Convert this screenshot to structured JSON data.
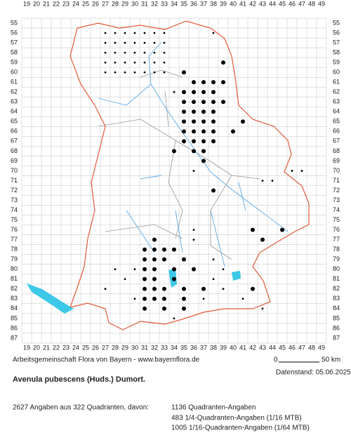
{
  "map": {
    "columns": [
      19,
      20,
      21,
      22,
      23,
      24,
      25,
      26,
      27,
      28,
      29,
      30,
      31,
      32,
      33,
      34,
      35,
      36,
      37,
      38,
      39,
      40,
      41,
      42,
      43,
      44,
      45,
      46,
      47,
      48,
      49
    ],
    "rows": [
      55,
      56,
      57,
      58,
      59,
      60,
      61,
      62,
      63,
      64,
      65,
      66,
      67,
      68,
      69,
      70,
      71,
      72,
      73,
      74,
      75,
      76,
      77,
      78,
      79,
      80,
      81,
      82,
      83,
      84,
      85,
      86,
      87
    ],
    "large_records": [
      [
        35,
        60
      ],
      [
        36,
        61
      ],
      [
        37,
        61
      ],
      [
        38,
        61
      ],
      [
        35,
        62
      ],
      [
        36,
        62
      ],
      [
        37,
        62
      ],
      [
        38,
        62
      ],
      [
        35,
        63
      ],
      [
        36,
        63
      ],
      [
        37,
        63
      ],
      [
        38,
        63
      ],
      [
        35,
        64
      ],
      [
        36,
        64
      ],
      [
        37,
        64
      ],
      [
        38,
        64
      ],
      [
        35,
        65
      ],
      [
        36,
        65
      ],
      [
        37,
        65
      ],
      [
        38,
        65
      ],
      [
        35,
        66
      ],
      [
        36,
        66
      ],
      [
        37,
        66
      ],
      [
        38,
        66
      ],
      [
        35,
        67
      ],
      [
        36,
        67
      ],
      [
        37,
        67
      ],
      [
        38,
        67
      ],
      [
        36,
        68
      ],
      [
        37,
        68
      ],
      [
        39,
        59
      ],
      [
        39,
        61
      ],
      [
        39,
        63
      ],
      [
        40,
        66
      ],
      [
        41,
        65
      ],
      [
        34,
        68
      ],
      [
        37,
        69
      ],
      [
        38,
        72
      ],
      [
        42,
        76
      ],
      [
        43,
        77
      ],
      [
        45,
        76
      ],
      [
        32,
        77
      ],
      [
        31,
        78
      ],
      [
        32,
        78
      ],
      [
        33,
        78
      ],
      [
        34,
        78
      ],
      [
        31,
        79
      ],
      [
        32,
        79
      ],
      [
        33,
        79
      ],
      [
        35,
        79
      ],
      [
        31,
        80
      ],
      [
        32,
        80
      ],
      [
        34,
        80
      ],
      [
        36,
        80
      ],
      [
        31,
        81
      ],
      [
        32,
        81
      ],
      [
        34,
        81
      ],
      [
        31,
        82
      ],
      [
        32,
        82
      ],
      [
        33,
        82
      ],
      [
        35,
        82
      ],
      [
        37,
        82
      ],
      [
        31,
        83
      ],
      [
        32,
        83
      ],
      [
        33,
        83
      ],
      [
        35,
        83
      ],
      [
        31,
        84
      ],
      [
        33,
        84
      ],
      [
        35,
        84
      ],
      [
        42,
        82
      ]
    ],
    "small_records": [
      [
        27,
        56
      ],
      [
        28,
        56
      ],
      [
        29,
        56
      ],
      [
        30,
        56
      ],
      [
        31,
        56
      ],
      [
        32,
        56
      ],
      [
        33,
        56
      ],
      [
        27,
        57
      ],
      [
        28,
        57
      ],
      [
        29,
        57
      ],
      [
        30,
        57
      ],
      [
        31,
        57
      ],
      [
        32,
        57
      ],
      [
        33,
        57
      ],
      [
        27,
        58
      ],
      [
        28,
        58
      ],
      [
        29,
        58
      ],
      [
        30,
        58
      ],
      [
        31,
        58
      ],
      [
        32,
        58
      ],
      [
        33,
        58
      ],
      [
        27,
        59
      ],
      [
        28,
        59
      ],
      [
        29,
        59
      ],
      [
        30,
        59
      ],
      [
        31,
        59
      ],
      [
        32,
        59
      ],
      [
        33,
        59
      ],
      [
        27,
        60
      ],
      [
        28,
        60
      ],
      [
        29,
        60
      ],
      [
        30,
        60
      ],
      [
        31,
        60
      ],
      [
        32,
        60
      ],
      [
        33,
        60
      ],
      [
        38,
        56
      ],
      [
        34,
        62
      ],
      [
        36,
        70
      ],
      [
        43,
        71
      ],
      [
        44,
        71
      ],
      [
        46,
        70
      ],
      [
        47,
        70
      ],
      [
        28,
        80
      ],
      [
        27,
        82
      ],
      [
        29,
        81
      ],
      [
        30,
        83
      ],
      [
        36,
        77
      ],
      [
        38,
        79
      ],
      [
        38,
        81
      ],
      [
        39,
        82
      ],
      [
        41,
        83
      ],
      [
        43,
        84
      ],
      [
        36,
        76
      ],
      [
        30,
        80
      ],
      [
        34,
        85
      ],
      [
        37,
        83
      ],
      [
        39,
        80
      ]
    ],
    "credit": "Arbeitsgemeinschaft Flora von Bayern - www.bayernflora.de",
    "scale": {
      "start": "0",
      "end": "50 km"
    },
    "date": "Datenstand: 05.06.2025",
    "title": "Avenula pubescens (Huds.) Dumort.",
    "summary": "2627 Angaben aus 322 Quadranten, davon:",
    "breakdown": [
      "1136 Quadranten-Angaben",
      "483 1/4-Quadranten-Angaben (1/16 MTB)",
      "1005 1/16-Quadranten-Angaben (1/64 MTB)"
    ]
  }
}
